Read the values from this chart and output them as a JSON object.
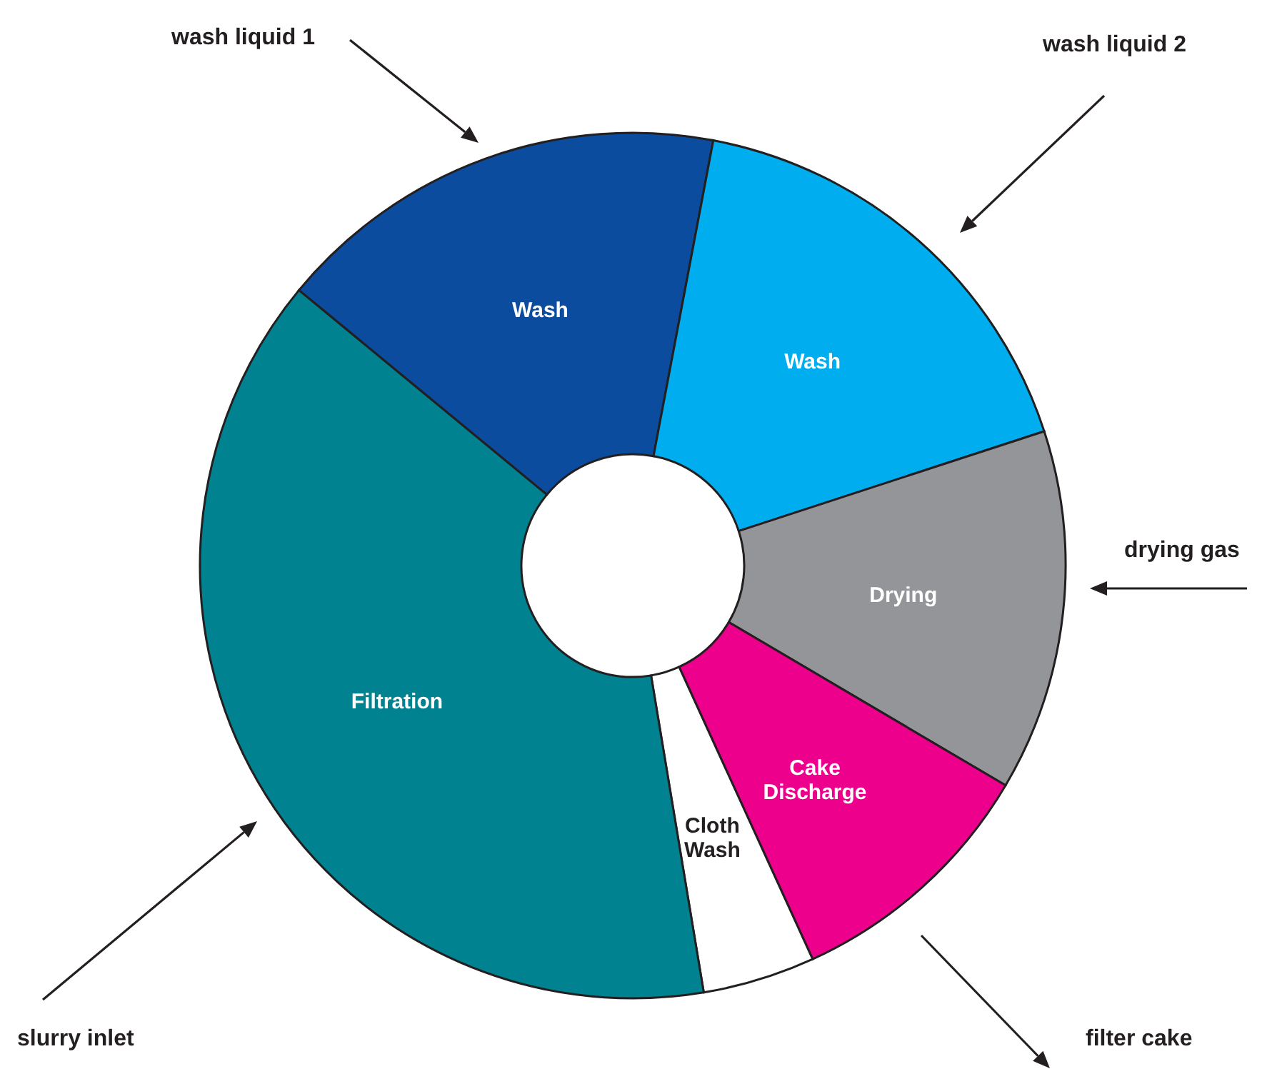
{
  "chart_data": {
    "type": "donut",
    "categories": [
      "Wash",
      "Wash",
      "Drying",
      "Cake Discharge",
      "Cloth Wash",
      "Filtration"
    ],
    "values": [
      17,
      17,
      13.5,
      9.7,
      4.2,
      38.6
    ],
    "colors": [
      "#0b4c9e",
      "#00aeef",
      "#939598",
      "#ec008c",
      "#ffffff",
      "#008290"
    ],
    "annotations": [
      "wash liquid 1",
      "wash liquid 2",
      "drying gas",
      "slurry inlet",
      "filter cake"
    ]
  }
}
